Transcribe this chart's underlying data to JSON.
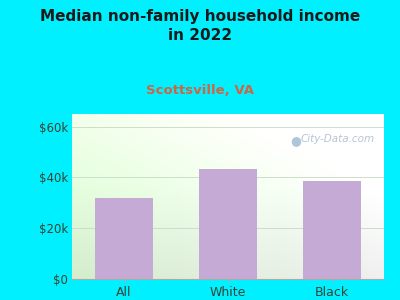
{
  "title": "Median non-family household income\nin 2022",
  "subtitle": "Scottsville, VA",
  "categories": [
    "All",
    "White",
    "Black"
  ],
  "values": [
    32000,
    43500,
    38500
  ],
  "bar_color": "#c4aad4",
  "background_color": "#00f0ff",
  "title_color": "#1a1a1a",
  "subtitle_color": "#cc6644",
  "tick_label_color": "#334433",
  "yticks": [
    0,
    20000,
    40000,
    60000
  ],
  "ytick_labels": [
    "$0",
    "$20k",
    "$40k",
    "$60k"
  ],
  "ylim": [
    0,
    65000
  ],
  "watermark": "City-Data.com",
  "watermark_color": "#aabbcc",
  "grid_color": "#ccddcc",
  "plot_bg_color_left": "#d4eecc",
  "plot_bg_color_right": "#f0f0f0"
}
